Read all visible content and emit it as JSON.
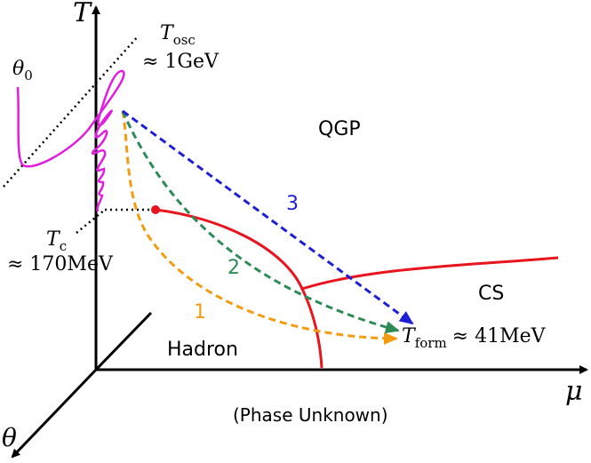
{
  "axes": {
    "temperature": "T",
    "chemical_potential": "μ",
    "theta": "θ"
  },
  "labels": {
    "theta0": {
      "symbol": "θ",
      "subscript": "0"
    },
    "t_osc": {
      "symbol": "T",
      "subscript": "osc",
      "approx": "≈ 1GeV"
    },
    "t_c": {
      "symbol": "T",
      "subscript": "c",
      "approx": "≈ 170MeV"
    },
    "t_form": {
      "symbol": "T",
      "subscript": "form",
      "approx": "≈ 41MeV"
    }
  },
  "phases": {
    "qgp": "QGP",
    "cs": "CS",
    "hadron": "Hadron",
    "unknown": "(Phase Unknown)"
  },
  "trajectories": [
    "1",
    "2",
    "3"
  ]
}
